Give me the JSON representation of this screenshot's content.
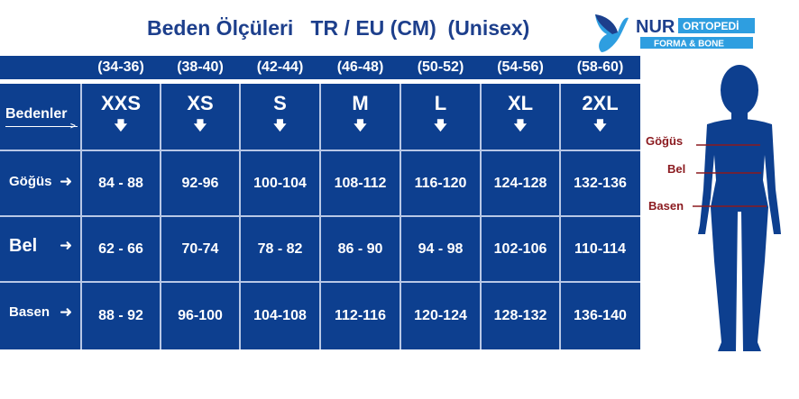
{
  "title": "Beden Ölçüleri   TR / EU (CM)  (Unisex)",
  "logo": {
    "brand": "NUR",
    "tag1": "ORTOPEDİ",
    "tag2": "FORMA & BONE"
  },
  "colors": {
    "table": "#0d3f8f",
    "title": "#1d3f8c",
    "labels": "#8b1a1f",
    "logo_light": "#2e9ee0"
  },
  "ranges": [
    "(34-36)",
    "(38-40)",
    "(42-44)",
    "(46-48)",
    "(50-52)",
    "(54-56)",
    "(58-60)"
  ],
  "header_label": "Bedenler",
  "sizes": [
    "XXS",
    "XS",
    "S",
    "M",
    "L",
    "XL",
    "2XL"
  ],
  "rows": [
    {
      "label": "Göğüs",
      "values": [
        "84 - 88",
        "92-96",
        "100-104",
        "108-112",
        "116-120",
        "124-128",
        "132-136"
      ]
    },
    {
      "label": "Bel",
      "values": [
        "62 - 66",
        "70-74",
        "78 - 82",
        "86 - 90",
        "94 - 98",
        "102-106",
        "110-114"
      ]
    },
    {
      "label": "Basen",
      "values": [
        "88 - 92",
        "96-100",
        "104-108",
        "112-116",
        "120-124",
        "128-132",
        "136-140"
      ]
    }
  ],
  "figure": {
    "labels": [
      "Göğüs",
      "Bel",
      "Basen"
    ]
  }
}
